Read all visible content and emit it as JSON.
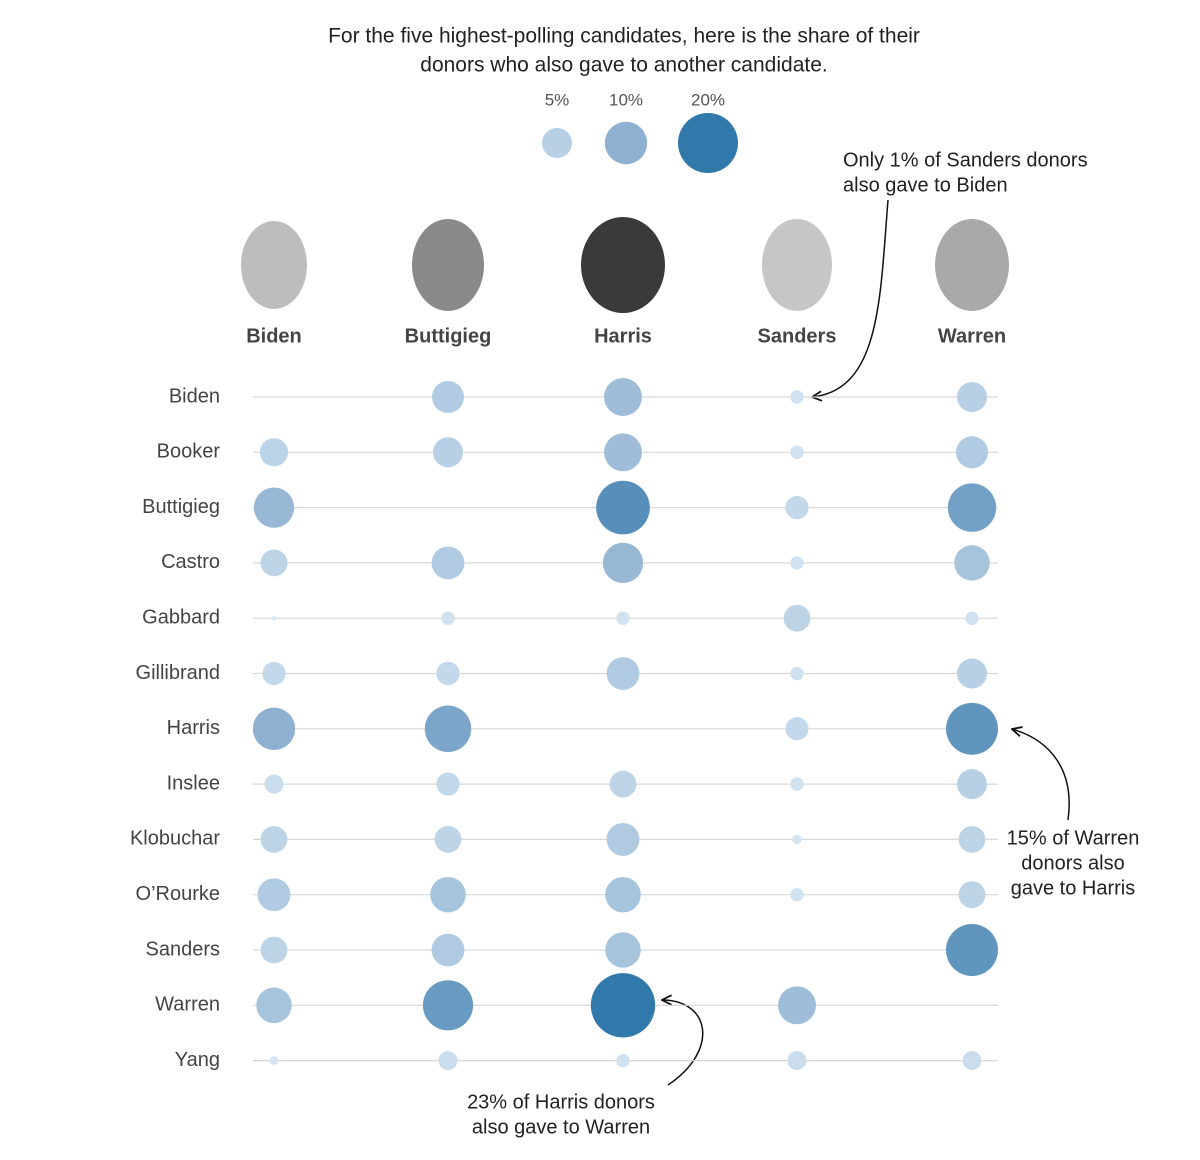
{
  "chart_data": {
    "type": "bubble",
    "title": [
      "For the five highest-polling candidates, here is the share of their",
      "donors who also gave to another candidate."
    ],
    "columns": [
      "Biden",
      "Buttigieg",
      "Harris",
      "Sanders",
      "Warren"
    ],
    "rows": [
      "Biden",
      "Booker",
      "Buttigieg",
      "Castro",
      "Gabbard",
      "Gillibrand",
      "Harris",
      "Inslee",
      "Klobuchar",
      "O’Rourke",
      "Sanders",
      "Warren",
      "Yang"
    ],
    "values": [
      [
        null,
        5.7,
        8,
        1,
        5
      ],
      [
        4.4,
        5,
        8,
        1,
        5.7
      ],
      [
        9,
        null,
        16,
        3,
        13
      ],
      [
        4,
        6,
        9,
        1,
        7
      ],
      [
        0.1,
        1,
        1,
        4,
        1
      ],
      [
        3,
        3,
        6,
        1,
        5
      ],
      [
        10,
        12,
        null,
        3,
        15
      ],
      [
        2,
        3,
        4,
        1,
        5
      ],
      [
        4,
        4,
        6,
        0.5,
        4
      ],
      [
        6,
        7,
        7,
        1,
        4
      ],
      [
        4,
        6,
        7,
        null,
        15
      ],
      [
        7,
        14,
        23,
        8,
        null
      ],
      [
        0.4,
        2,
        1,
        2,
        2
      ]
    ],
    "legend": [
      {
        "value": 5,
        "label": "5%",
        "color": "#b7d0e5"
      },
      {
        "value": 10,
        "label": "10%",
        "color": "#8fb1d1"
      },
      {
        "value": 20,
        "label": "20%",
        "color": "#3178ab"
      }
    ],
    "annotations": [
      [
        "Only 1% of Sanders donors",
        "also gave to Biden"
      ],
      [
        "15% of Warren",
        "donors also",
        "gave to Harris"
      ],
      [
        "23% of Harris donors",
        "also gave to Warren"
      ]
    ]
  }
}
